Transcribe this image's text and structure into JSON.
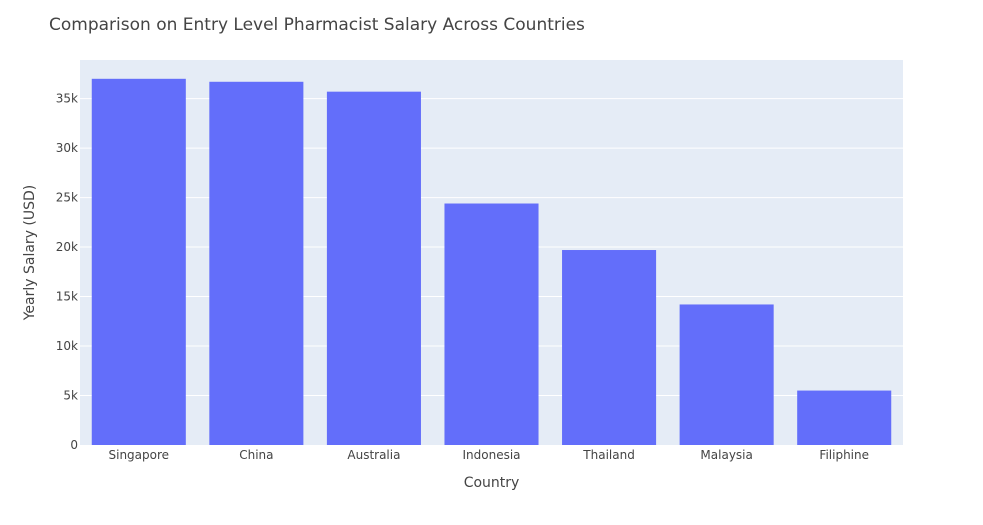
{
  "chart_data": {
    "type": "bar",
    "title": "Comparison on Entry Level Pharmacist Salary Across Countries",
    "xlabel": "Country",
    "ylabel": "Yearly Salary (USD)",
    "categories": [
      "Singapore",
      "China",
      "Australia",
      "Indonesia",
      "Thailand",
      "Malaysia",
      "Filiphine"
    ],
    "values": [
      37000,
      36700,
      35700,
      24400,
      19700,
      14200,
      5500
    ],
    "ylim": [
      0,
      38900
    ],
    "yticks": [
      0,
      5000,
      10000,
      15000,
      20000,
      25000,
      30000,
      35000
    ],
    "ytick_labels": [
      "0",
      "5k",
      "10k",
      "15k",
      "20k",
      "25k",
      "30k",
      "35k"
    ],
    "grid": true,
    "colors": {
      "bar": "#636efa",
      "plot_bg": "#e5ecf6",
      "text": "#444444",
      "grid": "#ffffff"
    }
  }
}
